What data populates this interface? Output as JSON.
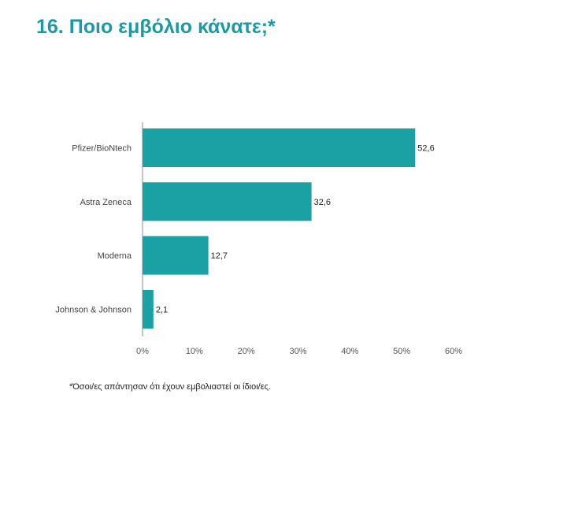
{
  "title": "16. Ποιο εμβόλιο κάνατε;*",
  "footnote": "*Όσοι/ες απάντησαν ότι έχουν εμβολιαστεί οι ίδιοι/ες.",
  "colors": {
    "title": "#1a9ba3",
    "bar": "#1aa1a4",
    "axis": "#888888"
  },
  "chart_data": {
    "type": "bar",
    "orientation": "horizontal",
    "categories": [
      "Pfizer/BioNtech",
      "Astra Zeneca",
      "Moderna",
      "Johnson & Johnson"
    ],
    "values": [
      52.6,
      32.6,
      12.7,
      2.1
    ],
    "value_labels": [
      "52,6",
      "32,6",
      "12,7",
      "2,1"
    ],
    "xlim": [
      0,
      60
    ],
    "x_ticks": [
      0,
      10,
      20,
      30,
      40,
      50,
      60
    ],
    "x_tick_labels": [
      "0%",
      "10%",
      "20%",
      "30%",
      "40%",
      "50%",
      "60%"
    ],
    "grid": false,
    "legend": "none"
  }
}
